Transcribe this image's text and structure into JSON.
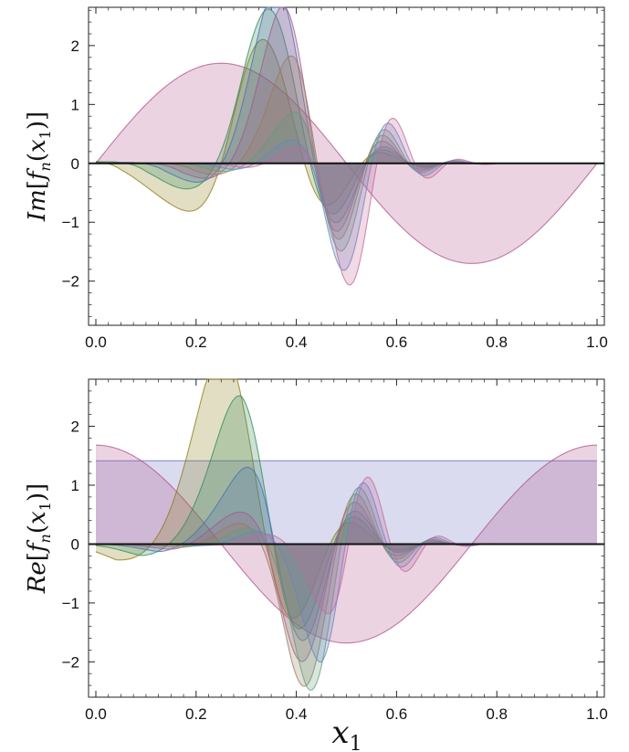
{
  "chart_data": [
    {
      "type": "area",
      "ylabel": "Im[f_n(x_1)]",
      "ylabel_parts": {
        "a": "Im",
        "b": "[",
        "c": "f",
        "d": "n",
        "e": "(",
        "f": "x",
        "g": "1",
        "h": ")]"
      },
      "xlim": [
        0.0,
        1.0
      ],
      "ylim": [
        -2.75,
        2.65
      ],
      "xticks": [
        "0.0",
        "0.2",
        "0.4",
        "0.6",
        "0.8",
        "1.0"
      ],
      "yticks": [
        -2,
        -1,
        0,
        1,
        2
      ],
      "ytick_labels": [
        "−2",
        "−1",
        "0",
        "1",
        "2"
      ],
      "zero_line": true,
      "fill_to_zero": true,
      "grid": false,
      "series": [
        {
          "mode": "n1-im",
          "amp": 1.7,
          "color": "#b04f8a"
        },
        {
          "mode": "packet",
          "center": 0.25,
          "width": 0.07,
          "k": 2.2,
          "amp": 1.2,
          "phase": 0.0,
          "decay": 0.26,
          "color": "#8c7a14"
        },
        {
          "mode": "packet",
          "center": 0.3,
          "width": 0.065,
          "k": 2.5,
          "amp": 1.15,
          "phase": 0.6,
          "decay": 0.22,
          "color": "#2e8b57"
        },
        {
          "mode": "packet",
          "center": 0.34,
          "width": 0.06,
          "k": 2.8,
          "amp": 1.08,
          "phase": 1.2,
          "decay": 0.2,
          "color": "#4a6fb0"
        },
        {
          "mode": "packet",
          "center": 0.37,
          "width": 0.058,
          "k": 3.1,
          "amp": 1.02,
          "phase": 1.8,
          "decay": 0.18,
          "color": "#a05a8e"
        },
        {
          "mode": "packet",
          "center": 0.4,
          "width": 0.055,
          "k": 3.4,
          "amp": 0.96,
          "phase": 2.4,
          "decay": 0.17,
          "color": "#9a7a5e"
        },
        {
          "mode": "packet",
          "center": 0.43,
          "width": 0.052,
          "k": 3.7,
          "amp": 0.9,
          "phase": 3.0,
          "decay": 0.16,
          "color": "#5e9e7a"
        },
        {
          "mode": "packet",
          "center": 0.46,
          "width": 0.05,
          "k": 4.0,
          "amp": 0.84,
          "phase": 3.6,
          "decay": 0.15,
          "color": "#6a84c0"
        },
        {
          "mode": "packet",
          "center": 0.49,
          "width": 0.048,
          "k": 4.3,
          "amp": 0.78,
          "phase": 4.2,
          "decay": 0.14,
          "color": "#c06a9c"
        }
      ]
    },
    {
      "type": "area",
      "ylabel": "Re[f_n(x_1)]",
      "ylabel_parts": {
        "a": "Re",
        "b": "[",
        "c": "f",
        "d": "n",
        "e": "(",
        "f": "x",
        "g": "1",
        "h": ")]"
      },
      "xlabel": "x_1",
      "xlabel_parts": {
        "a": "x",
        "b": "1"
      },
      "xlim": [
        0.0,
        1.0
      ],
      "ylim": [
        -2.6,
        2.8
      ],
      "xticks": [
        "0.0",
        "0.2",
        "0.4",
        "0.6",
        "0.8",
        "1.0"
      ],
      "yticks": [
        -2,
        -1,
        0,
        1,
        2
      ],
      "ytick_labels": [
        "−2",
        "−1",
        "0",
        "1",
        "2"
      ],
      "zero_line": true,
      "fill_to_zero": true,
      "grid": false,
      "series": [
        {
          "mode": "const",
          "value": 1.414,
          "color": "#6a6fc0"
        },
        {
          "mode": "n1-re",
          "amp": 1.68,
          "color": "#b04f8a"
        },
        {
          "mode": "packet",
          "center": 0.24,
          "width": 0.07,
          "k": 2.2,
          "amp": 1.2,
          "phase": 1.57,
          "decay": 0.26,
          "color": "#8c7a14"
        },
        {
          "mode": "packet",
          "center": 0.29,
          "width": 0.065,
          "k": 2.5,
          "amp": 1.15,
          "phase": 2.2,
          "decay": 0.22,
          "color": "#2e8b57"
        },
        {
          "mode": "packet",
          "center": 0.33,
          "width": 0.06,
          "k": 2.8,
          "amp": 1.08,
          "phase": 2.8,
          "decay": 0.2,
          "color": "#4a6fb0"
        },
        {
          "mode": "packet",
          "center": 0.36,
          "width": 0.058,
          "k": 3.1,
          "amp": 1.02,
          "phase": 3.4,
          "decay": 0.18,
          "color": "#a05a8e"
        },
        {
          "mode": "packet",
          "center": 0.39,
          "width": 0.055,
          "k": 3.4,
          "amp": 0.96,
          "phase": 4.0,
          "decay": 0.17,
          "color": "#9a7a5e"
        },
        {
          "mode": "packet",
          "center": 0.42,
          "width": 0.052,
          "k": 3.7,
          "amp": 0.9,
          "phase": 4.6,
          "decay": 0.16,
          "color": "#5e9e7a"
        },
        {
          "mode": "packet",
          "center": 0.45,
          "width": 0.05,
          "k": 4.0,
          "amp": 0.84,
          "phase": 5.2,
          "decay": 0.15,
          "color": "#6a84c0"
        },
        {
          "mode": "packet",
          "center": 0.48,
          "width": 0.048,
          "k": 4.3,
          "amp": 0.78,
          "phase": 5.8,
          "decay": 0.14,
          "color": "#c06a9c"
        }
      ]
    }
  ]
}
